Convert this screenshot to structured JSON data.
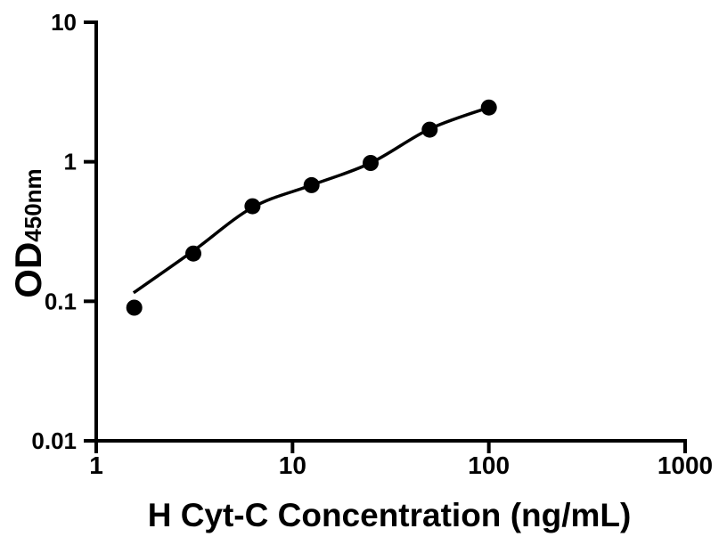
{
  "window": {
    "background": "#ffffff"
  },
  "chart_data": {
    "type": "scatter",
    "title": "",
    "xlabel": "H Cyt-C Concentration (ng/mL)",
    "ylabel": "OD450nm",
    "ylabel_main": "OD",
    "ylabel_sub": "450nm",
    "x_scale": "log10",
    "y_scale": "log10",
    "xlim": [
      1,
      1000
    ],
    "ylim": [
      0.01,
      10
    ],
    "grid": false,
    "legend": false,
    "axis_color": "#000000",
    "background_color": "#ffffff",
    "x_ticks": [
      {
        "value": 1,
        "label": "1"
      },
      {
        "value": 10,
        "label": "10"
      },
      {
        "value": 100,
        "label": "100"
      },
      {
        "value": 1000,
        "label": "1000"
      }
    ],
    "y_ticks": [
      {
        "value": 0.01,
        "label": "0.01"
      },
      {
        "value": 0.1,
        "label": "0.1"
      },
      {
        "value": 1,
        "label": "1"
      },
      {
        "value": 10,
        "label": "10"
      }
    ],
    "series": [
      {
        "marker": "circle",
        "color": "#000000",
        "points": [
          {
            "x": 1.5625,
            "y": 0.09
          },
          {
            "x": 3.125,
            "y": 0.22
          },
          {
            "x": 6.25,
            "y": 0.48
          },
          {
            "x": 12.5,
            "y": 0.68
          },
          {
            "x": 25,
            "y": 0.98
          },
          {
            "x": 50,
            "y": 1.7
          },
          {
            "x": 100,
            "y": 2.45
          }
        ]
      }
    ],
    "fit_curve": {
      "color": "#000000",
      "points": [
        [
          1.55,
          0.115
        ],
        [
          3.125,
          0.23
        ],
        [
          6.25,
          0.47
        ],
        [
          12.5,
          0.68
        ],
        [
          25,
          0.98
        ],
        [
          50,
          1.72
        ],
        [
          100,
          2.45
        ]
      ]
    }
  }
}
